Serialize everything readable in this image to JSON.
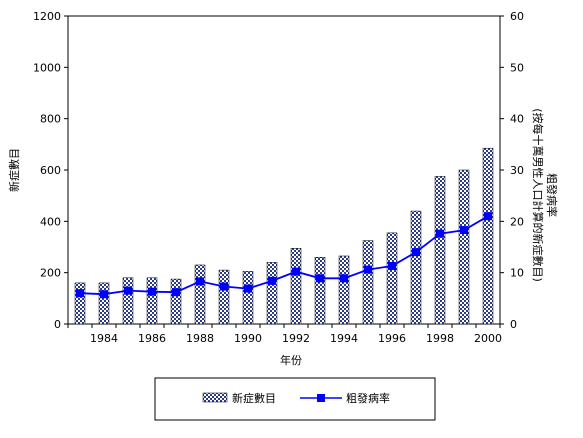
{
  "chart_data": {
    "type": "bar",
    "categories": [
      "1983",
      "1984",
      "1985",
      "1986",
      "1987",
      "1988",
      "1989",
      "1990",
      "1991",
      "1992",
      "1993",
      "1994",
      "1995",
      "1996",
      "1997",
      "1998",
      "1999",
      "2000"
    ],
    "x_tick_labels": [
      "1984",
      "1986",
      "1988",
      "1990",
      "1992",
      "1994",
      "1996",
      "1998",
      "2000"
    ],
    "xlabel": "年份",
    "ylabel_left": "新症數目",
    "ylabel_right": "粗發病率\n(按每十萬男性人口計算的新症數目)",
    "ylim_left": [
      0,
      1200
    ],
    "yticks_left": [
      "0",
      "200",
      "400",
      "600",
      "800",
      "1000",
      "1200"
    ],
    "ylim_right": [
      0,
      60
    ],
    "yticks_right": [
      "0",
      "10",
      "20",
      "30",
      "40",
      "50",
      "60"
    ],
    "legend_position": "bottom",
    "grid": false,
    "series": [
      {
        "name": "新症數目",
        "type": "bar",
        "axis": "left",
        "pattern": "checkered",
        "values": [
          160,
          160,
          180,
          180,
          175,
          230,
          210,
          205,
          240,
          295,
          260,
          265,
          325,
          355,
          440,
          575,
          600,
          685
        ]
      },
      {
        "name": "粗發病率",
        "type": "line",
        "axis": "right",
        "color": "#0000ff",
        "marker": "square",
        "values": [
          6.0,
          5.8,
          6.5,
          6.3,
          6.2,
          8.3,
          7.3,
          6.9,
          8.4,
          10.2,
          8.9,
          8.9,
          10.6,
          11.3,
          14.0,
          17.6,
          18.3,
          21.0
        ]
      }
    ]
  }
}
